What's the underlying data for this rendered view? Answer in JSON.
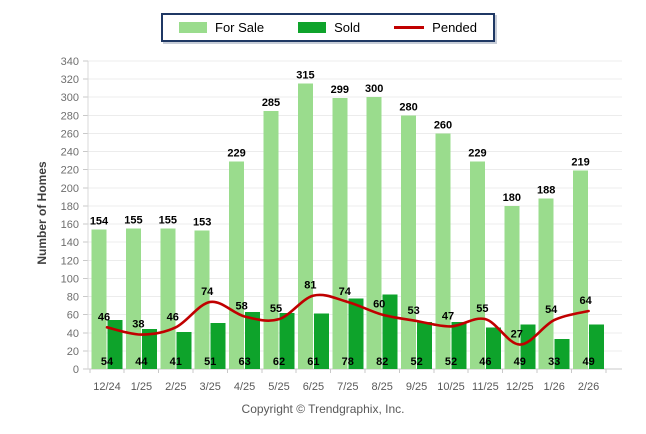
{
  "chart_data": {
    "type": "bar",
    "categories": [
      "12/24",
      "1/25",
      "2/25",
      "3/25",
      "4/25",
      "5/25",
      "6/25",
      "7/25",
      "8/25",
      "9/25",
      "10/25",
      "11/25",
      "12/25",
      "1/26",
      "2/26"
    ],
    "series": [
      {
        "name": "For Sale",
        "kind": "bar",
        "color": "#9ADC8D",
        "values": [
          154,
          155,
          155,
          153,
          229,
          285,
          315,
          299,
          300,
          280,
          260,
          229,
          180,
          188,
          219
        ]
      },
      {
        "name": "Sold",
        "kind": "bar",
        "color": "#0EA32B",
        "values": [
          54,
          44,
          41,
          51,
          63,
          62,
          61,
          78,
          82,
          52,
          52,
          46,
          49,
          33,
          49
        ]
      },
      {
        "name": "Pended",
        "kind": "line",
        "color": "#C00000",
        "values": [
          46,
          38,
          46,
          74,
          58,
          55,
          81,
          74,
          60,
          53,
          47,
          55,
          27,
          54,
          64
        ]
      }
    ],
    "title": "",
    "xlabel": "",
    "ylabel": "Number of Homes",
    "ylim": [
      0,
      340
    ],
    "ytick_step": 20,
    "grid": true,
    "legend_position": "top-center",
    "value_labels": true
  },
  "footer": {
    "copyright": "Copyright © Trendgraphix, Inc."
  }
}
